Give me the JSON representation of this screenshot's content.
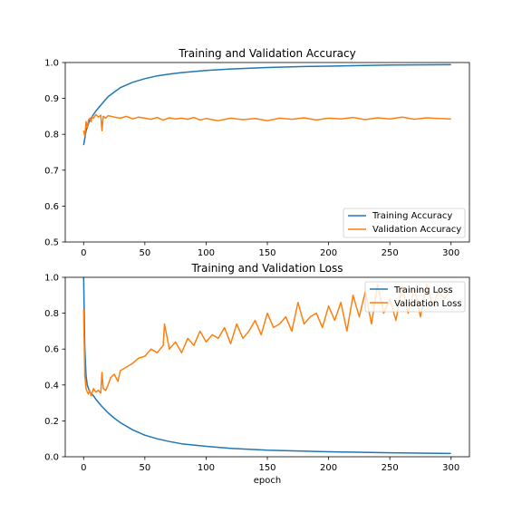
{
  "chart_data": [
    {
      "type": "line",
      "title": "Training and Validation Accuracy",
      "xlabel": "",
      "ylabel": "",
      "xlim": [
        -15,
        315
      ],
      "ylim": [
        0.5,
        1.0
      ],
      "xticks": [
        0,
        50,
        100,
        150,
        200,
        250,
        300
      ],
      "yticks": [
        0.5,
        0.6,
        0.7,
        0.8,
        0.9,
        1.0
      ],
      "ytick_labels": [
        "0.5",
        "0.6",
        "0.7",
        "0.8",
        "0.9",
        "1.0"
      ],
      "grid": false,
      "legend": "lower-right",
      "series": [
        {
          "name": "Training Accuracy",
          "color": "#1f77b4",
          "x": [
            0,
            2,
            5,
            10,
            15,
            20,
            30,
            40,
            50,
            60,
            70,
            80,
            100,
            120,
            150,
            180,
            200,
            250,
            300
          ],
          "values": [
            0.77,
            0.81,
            0.84,
            0.865,
            0.885,
            0.905,
            0.93,
            0.945,
            0.955,
            0.963,
            0.968,
            0.972,
            0.978,
            0.982,
            0.986,
            0.989,
            0.99,
            0.993,
            0.994
          ]
        },
        {
          "name": "Validation Accuracy",
          "color": "#ff7f0e",
          "x": [
            0,
            1,
            2,
            3,
            4,
            5,
            6,
            7,
            8,
            10,
            12,
            14,
            15,
            16,
            18,
            20,
            25,
            30,
            35,
            40,
            45,
            50,
            55,
            60,
            65,
            70,
            75,
            80,
            85,
            90,
            95,
            100,
            110,
            120,
            130,
            140,
            150,
            160,
            170,
            180,
            190,
            200,
            210,
            220,
            230,
            240,
            250,
            260,
            270,
            280,
            290,
            300
          ],
          "values": [
            0.81,
            0.795,
            0.835,
            0.82,
            0.84,
            0.845,
            0.835,
            0.85,
            0.845,
            0.855,
            0.848,
            0.853,
            0.81,
            0.85,
            0.845,
            0.852,
            0.848,
            0.845,
            0.85,
            0.843,
            0.848,
            0.845,
            0.842,
            0.847,
            0.84,
            0.846,
            0.843,
            0.845,
            0.842,
            0.847,
            0.84,
            0.844,
            0.838,
            0.845,
            0.841,
            0.844,
            0.838,
            0.845,
            0.842,
            0.846,
            0.84,
            0.845,
            0.843,
            0.847,
            0.841,
            0.846,
            0.843,
            0.848,
            0.842,
            0.846,
            0.844,
            0.843
          ]
        }
      ]
    },
    {
      "type": "line",
      "title": "Training and Validation Loss",
      "xlabel": "epoch",
      "ylabel": "",
      "xlim": [
        -15,
        315
      ],
      "ylim": [
        0.0,
        1.0
      ],
      "xticks": [
        0,
        50,
        100,
        150,
        200,
        250,
        300
      ],
      "yticks": [
        0.0,
        0.2,
        0.4,
        0.6,
        0.8,
        1.0
      ],
      "ytick_labels": [
        "0.0",
        "0.2",
        "0.4",
        "0.6",
        "0.8",
        "1.0"
      ],
      "grid": false,
      "legend": "upper-right",
      "series": [
        {
          "name": "Training Loss",
          "color": "#1f77b4",
          "x": [
            0,
            1,
            2,
            3,
            5,
            8,
            10,
            15,
            20,
            25,
            30,
            40,
            50,
            60,
            70,
            80,
            100,
            120,
            150,
            200,
            250,
            300
          ],
          "values": [
            1.0,
            0.6,
            0.45,
            0.4,
            0.36,
            0.34,
            0.32,
            0.28,
            0.245,
            0.215,
            0.19,
            0.15,
            0.12,
            0.1,
            0.085,
            0.072,
            0.058,
            0.047,
            0.037,
            0.028,
            0.022,
            0.018
          ]
        },
        {
          "name": "Validation Loss",
          "color": "#ff7f0e",
          "x": [
            0,
            1,
            2,
            3,
            4,
            5,
            6,
            8,
            10,
            12,
            14,
            15,
            16,
            18,
            20,
            22,
            25,
            28,
            30,
            35,
            40,
            45,
            50,
            55,
            60,
            65,
            66,
            70,
            75,
            80,
            85,
            90,
            95,
            100,
            105,
            110,
            115,
            120,
            125,
            130,
            135,
            140,
            145,
            150,
            155,
            160,
            165,
            170,
            175,
            180,
            185,
            190,
            195,
            200,
            205,
            210,
            215,
            220,
            225,
            230,
            235,
            240,
            245,
            250,
            255,
            260,
            265,
            270,
            275,
            280,
            285,
            290,
            295,
            300
          ],
          "values": [
            0.82,
            0.45,
            0.38,
            0.36,
            0.35,
            0.37,
            0.34,
            0.38,
            0.36,
            0.37,
            0.355,
            0.47,
            0.38,
            0.37,
            0.4,
            0.44,
            0.46,
            0.42,
            0.48,
            0.5,
            0.52,
            0.55,
            0.56,
            0.6,
            0.58,
            0.62,
            0.74,
            0.6,
            0.64,
            0.58,
            0.66,
            0.62,
            0.7,
            0.64,
            0.68,
            0.66,
            0.72,
            0.63,
            0.74,
            0.66,
            0.7,
            0.76,
            0.68,
            0.8,
            0.72,
            0.74,
            0.78,
            0.7,
            0.86,
            0.74,
            0.78,
            0.8,
            0.72,
            0.84,
            0.76,
            0.86,
            0.7,
            0.9,
            0.78,
            0.92,
            0.74,
            0.96,
            0.8,
            0.88,
            0.76,
            0.95,
            0.8,
            0.94,
            0.78,
            0.96,
            0.84,
            0.92,
            0.88,
            0.94
          ]
        }
      ]
    }
  ]
}
